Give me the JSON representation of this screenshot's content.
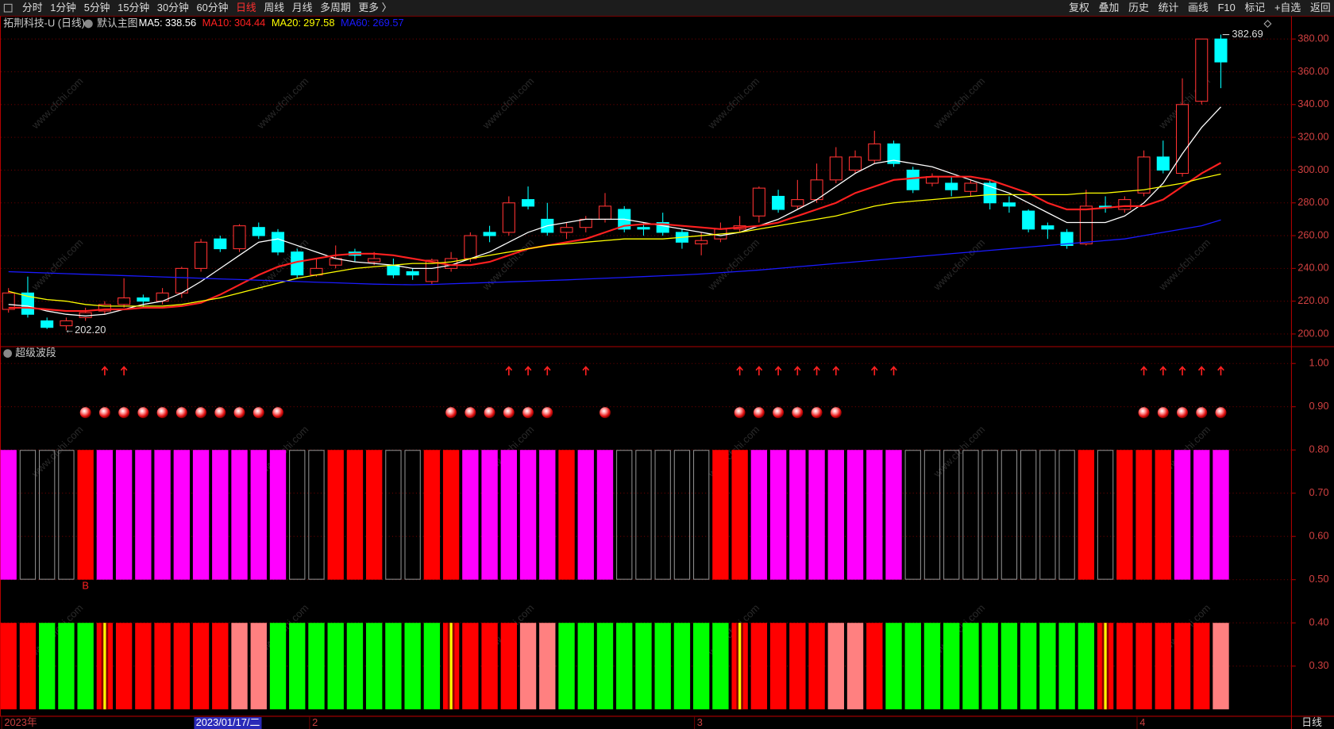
{
  "toolbar": {
    "left": [
      "分时",
      "1分钟",
      "5分钟",
      "15分钟",
      "30分钟",
      "60分钟",
      "日线",
      "周线",
      "月线",
      "多周期",
      "更多 〉"
    ],
    "active": "日线",
    "right": [
      "复权",
      "叠加",
      "历史",
      "统计",
      "画线",
      "F10",
      "标记",
      "+自选",
      "返回"
    ]
  },
  "watermark": "www.cfchi.com",
  "chart_data": [
    {
      "type": "candlestick",
      "title": "拓荆科技-U (日线)",
      "subtitle": "默认主图",
      "period_label": "日线",
      "categories": [
        "2023年",
        null,
        null,
        null,
        null,
        null,
        null,
        null,
        null,
        null,
        "2023/01/17/二",
        null,
        null,
        null,
        null,
        null,
        "2",
        null,
        null,
        null,
        null,
        null,
        null,
        null,
        null,
        null,
        null,
        null,
        null,
        null,
        null,
        null,
        null,
        null,
        null,
        null,
        "3",
        null,
        null,
        null,
        null,
        null,
        null,
        null,
        null,
        null,
        null,
        null,
        null,
        null,
        null,
        null,
        null,
        null,
        null,
        null,
        null,
        null,
        null,
        "4",
        null,
        null,
        null,
        null
      ],
      "highlighted_category": 10,
      "open": [
        215,
        225,
        208,
        205,
        210,
        214,
        218,
        222,
        220,
        225,
        240,
        258,
        252,
        265,
        262,
        250,
        236,
        242,
        250,
        244,
        242,
        238,
        232,
        240,
        246,
        262,
        262,
        282,
        270,
        262,
        265,
        270,
        276,
        265,
        268,
        262,
        255,
        258,
        264,
        272,
        284,
        278,
        282,
        294,
        300,
        306,
        316,
        300,
        292,
        292,
        287,
        292,
        280,
        275,
        266,
        262,
        255,
        278,
        276,
        286,
        308,
        298,
        342,
        380
      ],
      "high": [
        228,
        235,
        210,
        210,
        216,
        220,
        234,
        224,
        228,
        241,
        258,
        260,
        267,
        268,
        264,
        252,
        246,
        254,
        252,
        250,
        246,
        240,
        246,
        250,
        262,
        266,
        284,
        290,
        280,
        268,
        272,
        286,
        278,
        268,
        274,
        264,
        262,
        268,
        272,
        290,
        288,
        294,
        304,
        314,
        312,
        324,
        318,
        302,
        298,
        296,
        294,
        294,
        284,
        276,
        268,
        264,
        288,
        284,
        284,
        312,
        318,
        356,
        380,
        382.69
      ],
      "low": [
        213,
        210,
        203,
        202.2,
        208,
        212,
        216,
        216,
        218,
        222,
        238,
        250,
        250,
        258,
        248,
        234,
        235,
        240,
        244,
        242,
        234,
        233,
        230,
        238,
        244,
        256,
        260,
        276,
        260,
        258,
        262,
        268,
        262,
        260,
        260,
        252,
        248,
        256,
        262,
        268,
        274,
        276,
        280,
        292,
        298,
        304,
        302,
        286,
        290,
        284,
        284,
        276,
        274,
        262,
        258,
        252,
        254,
        274,
        274,
        284,
        298,
        296,
        340,
        350
      ],
      "close": [
        225,
        212,
        204,
        208,
        213,
        218,
        222,
        220,
        225,
        240,
        256,
        252,
        266,
        260,
        250,
        236,
        240,
        246,
        248,
        246,
        236,
        236,
        245,
        246,
        260,
        260,
        280,
        278,
        262,
        265,
        270,
        278,
        264,
        264,
        262,
        256,
        257,
        264,
        266,
        289,
        276,
        282,
        294,
        308,
        308,
        316,
        304,
        288,
        296,
        288,
        292,
        280,
        278,
        264,
        264,
        254,
        278,
        277,
        282,
        308,
        300,
        340,
        380,
        366
      ],
      "up_color": "#ff3232",
      "down_color": "#00ffff",
      "series": [
        {
          "name": "MA5",
          "color": "#ffffff",
          "values": [
            218,
            217,
            214,
            212,
            211,
            212,
            215,
            218,
            220,
            225,
            232,
            240,
            248,
            256,
            258,
            254,
            250,
            246,
            244,
            243,
            242,
            240,
            240,
            242,
            246,
            250,
            256,
            262,
            266,
            268,
            270,
            270,
            270,
            268,
            266,
            264,
            262,
            260,
            262,
            266,
            270,
            276,
            282,
            290,
            298,
            304,
            306,
            304,
            302,
            298,
            294,
            290,
            286,
            280,
            274,
            268,
            268,
            268,
            272,
            280,
            292,
            310,
            326,
            338.56
          ]
        },
        {
          "name": "MA10",
          "color": "#ff2020",
          "values": [
            216,
            216,
            215,
            214,
            214,
            215,
            215,
            216,
            216,
            217,
            219,
            224,
            230,
            236,
            241,
            244,
            246,
            248,
            249,
            249,
            248,
            246,
            244,
            242,
            242,
            244,
            248,
            252,
            254,
            256,
            258,
            262,
            266,
            267,
            267,
            266,
            265,
            264,
            265,
            266,
            268,
            272,
            276,
            280,
            286,
            290,
            294,
            295,
            296,
            296,
            296,
            294,
            290,
            286,
            280,
            276,
            276,
            277,
            278,
            278,
            282,
            290,
            298,
            304.44
          ]
        },
        {
          "name": "MA20",
          "color": "#ffff00",
          "values": [
            226,
            223,
            221,
            220,
            218,
            217,
            217,
            217,
            217,
            218,
            220,
            222,
            225,
            228,
            231,
            234,
            236,
            238,
            240,
            241,
            242,
            243,
            243,
            244,
            246,
            248,
            250,
            252,
            254,
            255,
            256,
            257,
            258,
            258,
            258,
            259,
            260,
            261,
            262,
            264,
            266,
            268,
            270,
            272,
            275,
            278,
            280,
            281,
            282,
            283,
            284,
            285,
            285,
            285,
            285,
            285,
            286,
            286,
            287,
            288,
            290,
            292,
            295,
            297.58
          ]
        },
        {
          "name": "MA60",
          "color": "#1a1aff",
          "values": [
            238,
            237.6,
            237.2,
            236.8,
            236.4,
            236,
            235.6,
            235.2,
            234.8,
            234.4,
            234,
            233.6,
            233.2,
            232.8,
            232.4,
            232,
            231.6,
            231.2,
            230.8,
            230.4,
            230.2,
            230,
            230.2,
            230.6,
            231,
            231.4,
            231.8,
            232.2,
            232.6,
            233,
            233.5,
            234,
            234.5,
            235,
            235.5,
            236,
            236.6,
            237.4,
            238.2,
            239,
            240,
            241,
            242,
            243,
            244,
            245,
            246,
            247,
            248,
            249,
            250,
            251,
            252,
            253,
            254,
            255,
            256,
            257,
            258,
            260,
            262,
            264,
            266,
            269.57
          ]
        }
      ],
      "legend_separator": ":",
      "low_label": "←202.20",
      "ylim": [
        193.8,
        384.1
      ],
      "yticks": [
        {
          "value": 200,
          "label": "200.00"
        },
        {
          "value": 220,
          "label": "220.00"
        },
        {
          "value": 240,
          "label": "240.00"
        },
        {
          "value": 260,
          "label": "260.00"
        },
        {
          "value": 280,
          "label": "280.00"
        },
        {
          "value": 300,
          "label": "300.00"
        },
        {
          "value": 320,
          "label": "320.00"
        },
        {
          "value": 340,
          "label": "340.00"
        },
        {
          "value": 360,
          "label": "360.00"
        },
        {
          "value": 380,
          "label": "380.00"
        }
      ],
      "grid": true
    },
    {
      "type": "band",
      "title": "超级波段",
      "upper": {
        "range": [
          0.5,
          0.8
        ],
        "states": "MHHHRMMMMMMMMMMHHRRRHHRRMMMMMRMMHHHHHRRMMMMMMMMHHHHHHHHHRHRRRMMM",
        "outline": "H",
        "palette": {
          "M": "#ff00ff",
          "R": "#ff0000",
          "H": "#8c8c8c"
        }
      },
      "lower": {
        "range": [
          0.2,
          0.4
        ],
        "states": "RRGGGYRRRRRRPPGGGGGGGGGYRRRPPGGGGGGGGGYRRRRPPRGGGGGGGGGGGYRRRRRP",
        "palette": {
          "R": "#ff0000",
          "G": "#00ff00",
          "P": "#ff8080",
          "Y": "#ff0000"
        },
        "stripe": {
          "key": "Y",
          "color": "#ffff00"
        }
      },
      "arrows": {
        "level": 1.0,
        "color": "#ff2020",
        "indices": [
          5,
          6,
          26,
          27,
          28,
          30,
          38,
          39,
          40,
          41,
          42,
          43,
          45,
          46,
          59,
          60,
          61,
          62,
          63
        ]
      },
      "markers": {
        "level": 0.9,
        "indices": [
          4,
          5,
          6,
          7,
          8,
          9,
          10,
          11,
          12,
          13,
          14,
          23,
          24,
          25,
          26,
          27,
          28,
          31,
          38,
          39,
          40,
          41,
          42,
          43,
          59,
          60,
          61,
          62,
          63
        ]
      },
      "signal": {
        "text": "B",
        "index": 4,
        "color": "#ff2020"
      },
      "ylim": [
        0.184,
        1.035
      ],
      "yticks": [
        {
          "value": 0.3,
          "label": "0.30"
        },
        {
          "value": 0.4,
          "label": "0.40"
        },
        {
          "value": 0.5,
          "label": "0.50"
        },
        {
          "value": 0.6,
          "label": "0.60"
        },
        {
          "value": 0.7,
          "label": "0.70"
        },
        {
          "value": 0.8,
          "label": "0.80"
        },
        {
          "value": 0.9,
          "label": "0.90"
        },
        {
          "value": 1.0,
          "label": "1.00"
        }
      ],
      "grid": true
    }
  ]
}
